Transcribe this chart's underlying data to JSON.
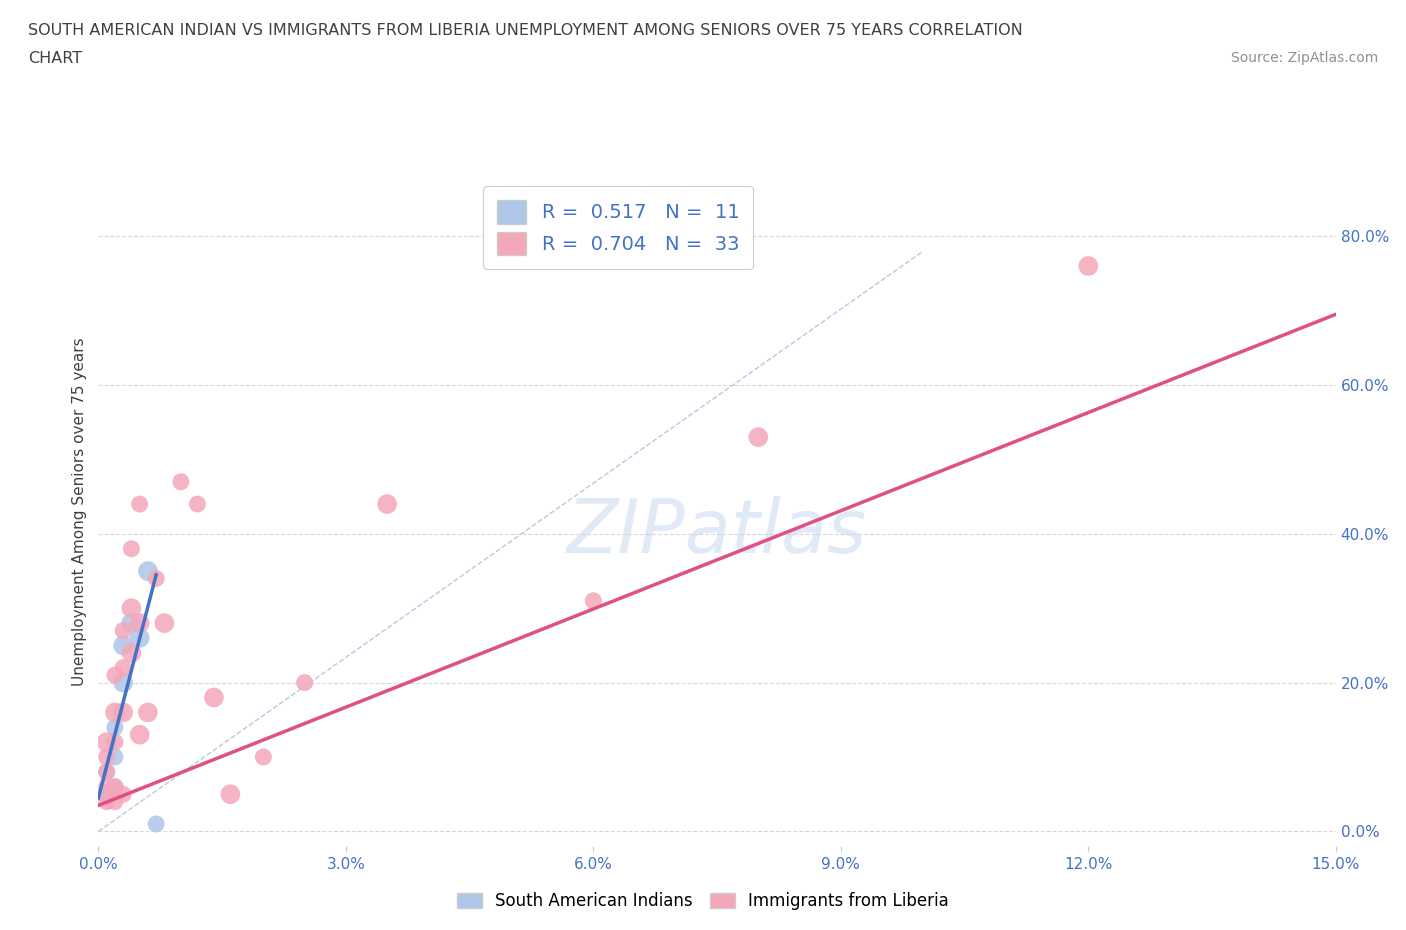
{
  "title_line1": "SOUTH AMERICAN INDIAN VS IMMIGRANTS FROM LIBERIA UNEMPLOYMENT AMONG SENIORS OVER 75 YEARS CORRELATION",
  "title_line2": "CHART",
  "source": "Source: ZipAtlas.com",
  "ylabel": "Unemployment Among Seniors over 75 years",
  "xlim": [
    0.0,
    0.15
  ],
  "ylim": [
    -0.02,
    0.88
  ],
  "xticks": [
    0.0,
    0.03,
    0.06,
    0.09,
    0.12,
    0.15
  ],
  "xtick_labels": [
    "0.0%",
    "3.0%",
    "6.0%",
    "9.0%",
    "12.0%",
    "15.0%"
  ],
  "yticks_right": [
    0.0,
    0.2,
    0.4,
    0.6,
    0.8
  ],
  "ytick_labels_right": [
    "0.0%",
    "20.0%",
    "40.0%",
    "60.0%",
    "80.0%"
  ],
  "watermark": "ZIPatlas",
  "legend_r1": "R =  0.517   N =  11",
  "legend_r2": "R =  0.704   N =  33",
  "blue_color": "#aec6e8",
  "blue_line_color": "#4472c4",
  "pink_color": "#f4a7b9",
  "pink_line_color": "#e05080",
  "ref_line_color": "#b8c8e0",
  "grid_color": "#d8d8d8",
  "title_color": "#404040",
  "source_color": "#909090",
  "blue_scatter_x": [
    0.001,
    0.001,
    0.002,
    0.002,
    0.002,
    0.003,
    0.003,
    0.004,
    0.005,
    0.006,
    0.007
  ],
  "blue_scatter_y": [
    0.05,
    0.08,
    0.06,
    0.1,
    0.14,
    0.2,
    0.25,
    0.28,
    0.26,
    0.35,
    0.01
  ],
  "blue_sizes": [
    200,
    150,
    150,
    150,
    150,
    200,
    200,
    200,
    200,
    200,
    150
  ],
  "pink_scatter_x": [
    0.001,
    0.001,
    0.001,
    0.001,
    0.001,
    0.002,
    0.002,
    0.002,
    0.002,
    0.002,
    0.003,
    0.003,
    0.003,
    0.003,
    0.004,
    0.004,
    0.004,
    0.005,
    0.005,
    0.005,
    0.006,
    0.007,
    0.008,
    0.01,
    0.012,
    0.014,
    0.016,
    0.02,
    0.025,
    0.035,
    0.06,
    0.08,
    0.12
  ],
  "pink_scatter_y": [
    0.1,
    0.06,
    0.08,
    0.12,
    0.04,
    0.06,
    0.12,
    0.16,
    0.21,
    0.04,
    0.05,
    0.16,
    0.22,
    0.27,
    0.24,
    0.3,
    0.38,
    0.13,
    0.28,
    0.44,
    0.16,
    0.34,
    0.28,
    0.47,
    0.44,
    0.18,
    0.05,
    0.1,
    0.2,
    0.44,
    0.31,
    0.53,
    0.76
  ],
  "pink_sizes": [
    150,
    150,
    150,
    200,
    150,
    150,
    150,
    200,
    150,
    150,
    150,
    200,
    150,
    150,
    200,
    200,
    150,
    200,
    200,
    150,
    200,
    150,
    200,
    150,
    150,
    200,
    200,
    150,
    150,
    200,
    150,
    200,
    200
  ],
  "legend_label1": "South American Indians",
  "legend_label2": "Immigrants from Liberia",
  "blue_trend_x": [
    0.0,
    0.007
  ],
  "blue_trend_y": [
    0.045,
    0.345
  ],
  "pink_trend_x": [
    0.0,
    0.15
  ],
  "pink_trend_y": [
    0.035,
    0.695
  ],
  "ref_line_x": [
    0.0,
    0.1
  ],
  "ref_line_y": [
    0.0,
    0.78
  ]
}
